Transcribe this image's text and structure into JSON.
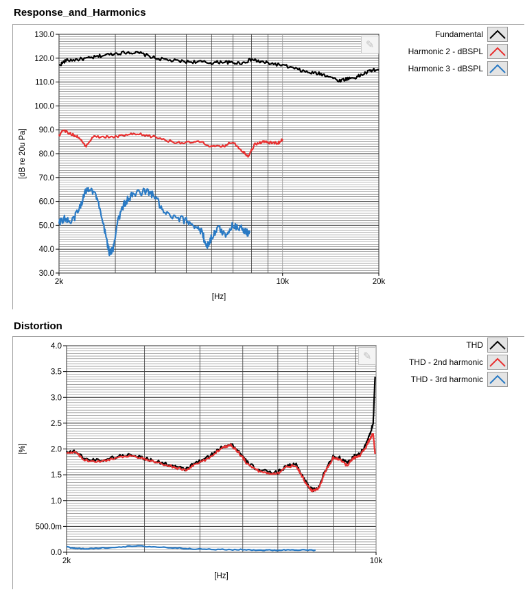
{
  "chart_data": [
    {
      "type": "line",
      "title": "Response_and_Harmonics",
      "xlabel": "[Hz]",
      "ylabel": "[dB re 20u Pa]",
      "x_scale": "log",
      "xlim": [
        2000,
        20000
      ],
      "ylim": [
        30,
        130
      ],
      "x_tick_labels": [
        "2k",
        "10k",
        "20k"
      ],
      "x_tick_values": [
        2000,
        10000,
        20000
      ],
      "y_ticks": [
        "30.0",
        "40.0",
        "50.0",
        "60.0",
        "70.0",
        "80.0",
        "90.0",
        "100.0",
        "110.0",
        "120.0",
        "130.0"
      ],
      "y_tick_values": [
        30,
        40,
        50,
        60,
        70,
        80,
        90,
        100,
        110,
        120,
        130
      ],
      "grid": true,
      "legend_position": "right",
      "series": [
        {
          "name": "Fundamental",
          "color": "#000000",
          "points": [
            [
              2000,
              117
            ],
            [
              2100,
              119
            ],
            [
              2300,
              119.5
            ],
            [
              2500,
              120
            ],
            [
              2700,
              121
            ],
            [
              3000,
              122
            ],
            [
              3300,
              122.5
            ],
            [
              3600,
              122
            ],
            [
              4000,
              120
            ],
            [
              4500,
              119
            ],
            [
              5000,
              118.5
            ],
            [
              5500,
              118.5
            ],
            [
              6000,
              118
            ],
            [
              6500,
              118.5
            ],
            [
              7000,
              118
            ],
            [
              7500,
              118
            ],
            [
              8000,
              119.5
            ],
            [
              8500,
              118.5
            ],
            [
              9000,
              118
            ],
            [
              10000,
              117
            ],
            [
              11000,
              115.5
            ],
            [
              12000,
              114
            ],
            [
              13000,
              113.5
            ],
            [
              14000,
              112.5
            ],
            [
              15000,
              110.5
            ],
            [
              16000,
              111.5
            ],
            [
              17000,
              112
            ],
            [
              18000,
              113.5
            ],
            [
              19000,
              115
            ],
            [
              20000,
              115
            ]
          ]
        },
        {
          "name": "Harmonic 2 - dBSPL",
          "color": "#e83030",
          "points": [
            [
              2000,
              87.5
            ],
            [
              2050,
              90
            ],
            [
              2200,
              88
            ],
            [
              2300,
              87
            ],
            [
              2420,
              83
            ],
            [
              2550,
              87
            ],
            [
              2800,
              87
            ],
            [
              3000,
              87
            ],
            [
              3300,
              88
            ],
            [
              3600,
              88
            ],
            [
              4000,
              87
            ],
            [
              4500,
              85
            ],
            [
              5000,
              84.5
            ],
            [
              5500,
              85
            ],
            [
              6000,
              83
            ],
            [
              6500,
              83
            ],
            [
              7000,
              85
            ],
            [
              7500,
              81
            ],
            [
              7800,
              79
            ],
            [
              8200,
              84
            ],
            [
              8700,
              85
            ],
            [
              9200,
              84.5
            ],
            [
              9700,
              84.5
            ],
            [
              10000,
              86
            ]
          ]
        },
        {
          "name": "Harmonic 3 - dBSPL",
          "color": "#2a7ac4",
          "points": [
            [
              2000,
              51
            ],
            [
              2080,
              53
            ],
            [
              2180,
              51
            ],
            [
              2300,
              56
            ],
            [
              2420,
              64
            ],
            [
              2500,
              66
            ],
            [
              2620,
              62
            ],
            [
              2750,
              50
            ],
            [
              2820,
              44
            ],
            [
              2880,
              38
            ],
            [
              2950,
              40
            ],
            [
              3050,
              52
            ],
            [
              3200,
              59
            ],
            [
              3350,
              62
            ],
            [
              3550,
              64
            ],
            [
              3800,
              64
            ],
            [
              4000,
              62
            ],
            [
              4250,
              55
            ],
            [
              4600,
              53
            ],
            [
              5000,
              52
            ],
            [
              5300,
              50
            ],
            [
              5600,
              47
            ],
            [
              5800,
              41
            ],
            [
              6000,
              45
            ],
            [
              6300,
              49
            ],
            [
              6600,
              46
            ],
            [
              7000,
              50
            ],
            [
              7400,
              49
            ],
            [
              7700,
              47
            ],
            [
              7900,
              47
            ]
          ]
        }
      ]
    },
    {
      "type": "line",
      "title": "Distortion",
      "xlabel": "[Hz]",
      "ylabel": "[%]",
      "x_scale": "log",
      "xlim": [
        2000,
        10000
      ],
      "ylim": [
        0,
        4
      ],
      "x_tick_labels": [
        "2k",
        "10k"
      ],
      "x_tick_values": [
        2000,
        10000
      ],
      "y_ticks": [
        "0.0",
        "500.0m",
        "1.0",
        "1.5",
        "2.0",
        "2.5",
        "3.0",
        "3.5",
        "4.0"
      ],
      "y_tick_values": [
        0,
        0.5,
        1.0,
        1.5,
        2.0,
        2.5,
        3.0,
        3.5,
        4.0
      ],
      "grid": true,
      "legend_position": "right",
      "series": [
        {
          "name": "THD",
          "color": "#000000",
          "points": [
            [
              2000,
              1.95
            ],
            [
              2100,
              1.95
            ],
            [
              2200,
              1.8
            ],
            [
              2400,
              1.78
            ],
            [
              2600,
              1.85
            ],
            [
              2800,
              1.9
            ],
            [
              3000,
              1.82
            ],
            [
              3200,
              1.75
            ],
            [
              3500,
              1.67
            ],
            [
              3700,
              1.6
            ],
            [
              3900,
              1.72
            ],
            [
              4200,
              1.85
            ],
            [
              4500,
              2.05
            ],
            [
              4700,
              2.1
            ],
            [
              4900,
              1.95
            ],
            [
              5100,
              1.75
            ],
            [
              5400,
              1.6
            ],
            [
              5700,
              1.55
            ],
            [
              6000,
              1.55
            ],
            [
              6300,
              1.68
            ],
            [
              6600,
              1.7
            ],
            [
              6800,
              1.5
            ],
            [
              7000,
              1.3
            ],
            [
              7200,
              1.2
            ],
            [
              7400,
              1.25
            ],
            [
              7700,
              1.6
            ],
            [
              8000,
              1.85
            ],
            [
              8300,
              1.82
            ],
            [
              8600,
              1.72
            ],
            [
              8900,
              1.85
            ],
            [
              9200,
              1.9
            ],
            [
              9500,
              2.1
            ],
            [
              9700,
              2.3
            ],
            [
              9850,
              2.5
            ],
            [
              9950,
              3.4
            ]
          ]
        },
        {
          "name": "THD - 2nd harmonic",
          "color": "#e83030",
          "points": [
            [
              2000,
              1.93
            ],
            [
              2100,
              1.93
            ],
            [
              2200,
              1.78
            ],
            [
              2400,
              1.76
            ],
            [
              2600,
              1.83
            ],
            [
              2800,
              1.88
            ],
            [
              3000,
              1.8
            ],
            [
              3200,
              1.73
            ],
            [
              3500,
              1.65
            ],
            [
              3700,
              1.58
            ],
            [
              3900,
              1.7
            ],
            [
              4200,
              1.83
            ],
            [
              4500,
              2.03
            ],
            [
              4700,
              2.08
            ],
            [
              4900,
              1.93
            ],
            [
              5100,
              1.73
            ],
            [
              5400,
              1.58
            ],
            [
              5700,
              1.53
            ],
            [
              6000,
              1.53
            ],
            [
              6300,
              1.66
            ],
            [
              6600,
              1.68
            ],
            [
              6800,
              1.48
            ],
            [
              7000,
              1.28
            ],
            [
              7200,
              1.18
            ],
            [
              7400,
              1.23
            ],
            [
              7700,
              1.58
            ],
            [
              8000,
              1.83
            ],
            [
              8300,
              1.8
            ],
            [
              8600,
              1.68
            ],
            [
              8900,
              1.82
            ],
            [
              9200,
              1.88
            ],
            [
              9500,
              2.05
            ],
            [
              9700,
              2.2
            ],
            [
              9850,
              2.3
            ],
            [
              9950,
              1.9
            ]
          ]
        },
        {
          "name": "THD - 3rd harmonic",
          "color": "#2a7ac4",
          "points": [
            [
              2000,
              0.1
            ],
            [
              2100,
              0.07
            ],
            [
              2300,
              0.07
            ],
            [
              2600,
              0.1
            ],
            [
              2900,
              0.12
            ],
            [
              3200,
              0.1
            ],
            [
              3600,
              0.08
            ],
            [
              4000,
              0.06
            ],
            [
              4500,
              0.05
            ],
            [
              5000,
              0.05
            ],
            [
              5500,
              0.04
            ],
            [
              6000,
              0.04
            ],
            [
              6500,
              0.05
            ],
            [
              7000,
              0.04
            ],
            [
              7300,
              0.04
            ]
          ]
        }
      ]
    }
  ]
}
